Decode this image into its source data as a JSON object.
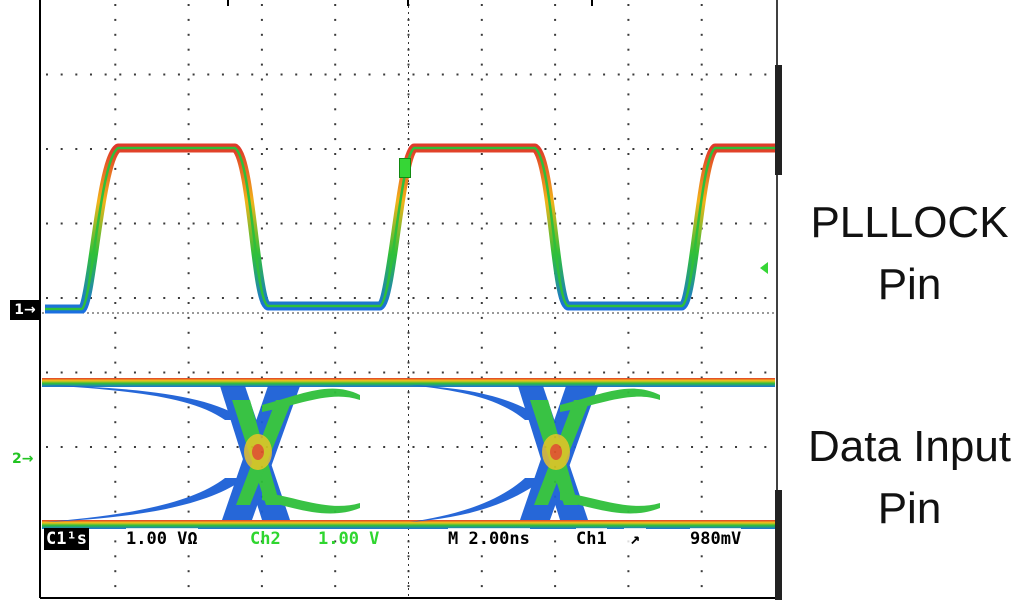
{
  "colors": {
    "grid": "#3a3a3a",
    "frame": "#000000",
    "ch1_trace": [
      "#e03a2a",
      "#f2a21a",
      "#2fbf3a",
      "#1a6fe0"
    ],
    "eye_core": "#1b5fd6",
    "eye_mid": "#2fbf3a",
    "eye_hot": "#f2c21a",
    "eye_peak": "#e03a2a",
    "ch2_label": "#2fd62f"
  },
  "labels": {
    "pin1_line1": "PLLLOCK",
    "pin1_line2": "Pin",
    "pin2_line1": "Data Input",
    "pin2_line2": "Pin"
  },
  "markers": {
    "ch1": "1→",
    "ch2": "2→"
  },
  "readout": {
    "c1": "C1¹s",
    "c1_scale": "1.00 VΩ",
    "ch2_name": "Ch2",
    "ch2_scale": "1.00 V",
    "timebase": "M 2.00ns",
    "trigger_src": "Ch1",
    "trigger_slope_icon": "rising-edge-icon",
    "trigger_level": "980mV"
  }
}
